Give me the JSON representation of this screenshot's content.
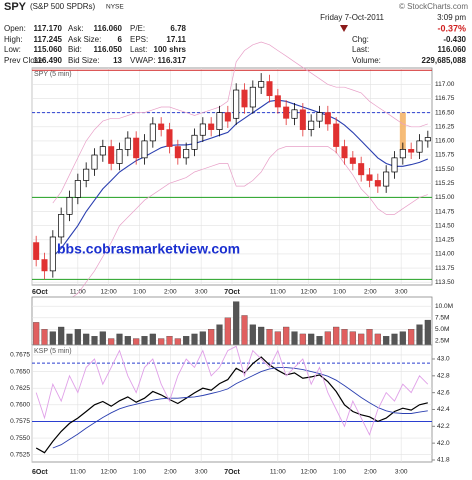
{
  "header": {
    "symbol": "SPY",
    "name": "(S&P 500 SPDRs)",
    "exchange": "NYSE",
    "credit": "© StockCharts.com",
    "date": "Friday  7-Oct-2011",
    "time": "3:09 pm",
    "change_pct": "-0.37%",
    "columns": [
      [
        [
          "Open:",
          "117.170"
        ],
        [
          "High:",
          "117.245"
        ],
        [
          "Low:",
          "115.060"
        ],
        [
          "Prev Close:",
          "116.490"
        ]
      ],
      [
        [
          "Ask:",
          "116.060"
        ],
        [
          "Ask Size:",
          "6"
        ],
        [
          "Bid:",
          "116.050"
        ],
        [
          "Bid Size:",
          "13"
        ]
      ],
      [
        [
          "P/E:",
          "6.78"
        ],
        [
          "EPS:",
          "17.11"
        ],
        [
          "Last:",
          "100 shrs"
        ],
        [
          "VWAP:",
          "116.317"
        ]
      ],
      [
        [
          "Chg:",
          "-0.430"
        ],
        [
          "Last:",
          "116.060"
        ],
        [
          "Volume:",
          "229,685,088"
        ]
      ]
    ]
  },
  "chart_data": [
    {
      "type": "candlestick",
      "title": "SPY (5 min)",
      "annotation": "bbs.cobrasmarketview.com",
      "up_color": "#000000",
      "down_color": "#e03030",
      "open": [
        114.2,
        113.9,
        113.7,
        114.3,
        114.7,
        115.0,
        115.3,
        115.5,
        115.75,
        115.9,
        115.6,
        115.85,
        116.05,
        115.7,
        116.0,
        116.3,
        116.2,
        115.9,
        115.7,
        115.85,
        116.1,
        116.3,
        116.2,
        116.5,
        116.4,
        116.9,
        116.6,
        116.95,
        117.05,
        116.8,
        116.6,
        116.4,
        116.55,
        116.2,
        116.35,
        116.5,
        116.3,
        115.9,
        115.7,
        115.6,
        115.4,
        115.3,
        115.2,
        115.45,
        115.7,
        115.85,
        115.8,
        116.0
      ],
      "high": [
        114.32,
        114.02,
        114.42,
        114.82,
        115.12,
        115.42,
        115.62,
        115.87,
        116.02,
        116.02,
        115.97,
        116.17,
        116.17,
        116.12,
        116.42,
        116.42,
        116.32,
        116.02,
        115.97,
        116.22,
        116.42,
        116.42,
        116.62,
        116.62,
        117.02,
        117.02,
        117.07,
        117.2,
        117.17,
        116.92,
        116.72,
        116.67,
        116.67,
        116.47,
        116.62,
        116.62,
        116.42,
        116.02,
        115.82,
        115.72,
        115.52,
        115.42,
        115.57,
        115.82,
        115.97,
        115.97,
        116.12,
        116.18
      ],
      "low": [
        113.78,
        113.55,
        113.58,
        114.18,
        114.58,
        114.88,
        115.18,
        115.38,
        115.63,
        115.48,
        115.48,
        115.73,
        115.58,
        115.58,
        115.88,
        116.08,
        115.78,
        115.58,
        115.58,
        115.73,
        115.98,
        116.08,
        116.08,
        116.23,
        116.28,
        116.48,
        116.48,
        116.83,
        116.68,
        116.48,
        116.28,
        116.28,
        116.08,
        116.08,
        116.23,
        116.18,
        115.78,
        115.58,
        115.48,
        115.28,
        115.18,
        115.08,
        115.08,
        115.33,
        115.58,
        115.68,
        115.68,
        115.88
      ],
      "close": [
        113.9,
        113.7,
        114.3,
        114.7,
        115.0,
        115.3,
        115.5,
        115.75,
        115.9,
        115.6,
        115.85,
        116.05,
        115.7,
        116.0,
        116.3,
        116.2,
        115.9,
        115.7,
        115.85,
        116.1,
        116.3,
        116.2,
        116.5,
        116.35,
        116.9,
        116.6,
        116.95,
        117.05,
        116.8,
        116.6,
        116.4,
        116.55,
        116.2,
        116.35,
        116.5,
        116.3,
        115.9,
        115.7,
        115.6,
        115.4,
        115.3,
        115.2,
        115.45,
        115.7,
        115.85,
        115.8,
        116.0,
        116.06
      ],
      "overlays": [
        {
          "color": "#2b3fb0",
          "values": [
            null,
            null,
            113.95,
            114.1,
            114.3,
            114.5,
            114.75,
            114.95,
            115.15,
            115.3,
            115.45,
            115.55,
            115.65,
            115.72,
            115.8,
            115.88,
            115.92,
            115.93,
            115.93,
            115.95,
            116.0,
            116.05,
            116.1,
            116.15,
            116.3,
            116.4,
            116.5,
            116.6,
            116.7,
            116.72,
            116.7,
            116.65,
            116.6,
            116.55,
            116.5,
            116.45,
            116.38,
            116.28,
            116.15,
            116.0,
            115.85,
            115.7,
            115.6,
            115.55,
            115.55,
            115.58,
            115.62,
            115.68
          ]
        },
        {
          "color": "#e8a0c8",
          "values": [
            null,
            null,
            114.9,
            115.1,
            115.4,
            115.7,
            116.0,
            116.2,
            116.35,
            116.4,
            116.4,
            116.45,
            116.5,
            116.5,
            116.55,
            116.6,
            116.6,
            116.55,
            116.5,
            116.45,
            116.5,
            116.55,
            116.6,
            116.7,
            117.4,
            117.6,
            117.7,
            117.75,
            117.7,
            117.6,
            117.5,
            117.4,
            117.3,
            117.2,
            117.1,
            117.0,
            116.95,
            116.95,
            116.9,
            116.85,
            116.7,
            116.6,
            116.5,
            116.4,
            116.3,
            116.25,
            116.25,
            116.3
          ]
        },
        {
          "color": "#e8a0c8",
          "values": [
            null,
            null,
            113.0,
            113.1,
            113.2,
            113.3,
            113.5,
            113.7,
            113.95,
            114.2,
            114.5,
            114.65,
            114.8,
            114.95,
            115.05,
            115.15,
            115.25,
            115.3,
            115.35,
            115.45,
            115.5,
            115.55,
            115.6,
            115.6,
            115.2,
            115.2,
            115.3,
            115.45,
            115.7,
            115.85,
            115.9,
            115.9,
            115.9,
            115.9,
            115.9,
            115.9,
            115.8,
            115.6,
            115.4,
            115.15,
            115.0,
            114.8,
            114.7,
            114.7,
            114.8,
            114.9,
            115.0,
            115.05
          ]
        }
      ],
      "levels": [
        {
          "value": 117.25,
          "color": "#d02020",
          "dash": false
        },
        {
          "value": 115.0,
          "color": "#20a020",
          "dash": false
        },
        {
          "value": 113.55,
          "color": "#20a020",
          "dash": false
        },
        {
          "value": 116.5,
          "color": "#2b3fd0",
          "dash": true
        }
      ],
      "highlight": {
        "index": 44,
        "from": 115.8,
        "to": 116.5,
        "color": "#f5b060"
      },
      "ylim": [
        113.45,
        117.29
      ],
      "yticks": [
        {
          "value": 113.5,
          "label": "113.50"
        },
        {
          "value": 113.75,
          "label": "113.75"
        },
        {
          "value": 114,
          "label": "114.00"
        },
        {
          "value": 114.25,
          "label": "114.25"
        },
        {
          "value": 114.5,
          "label": "114.50"
        },
        {
          "value": 114.75,
          "label": "114.75"
        },
        {
          "value": 115,
          "label": "115.00"
        },
        {
          "value": 115.25,
          "label": "115.25"
        },
        {
          "value": 115.5,
          "label": "115.50"
        },
        {
          "value": 115.75,
          "label": "115.75"
        },
        {
          "value": 116,
          "label": "116.00"
        },
        {
          "value": 116.25,
          "label": "116.25"
        },
        {
          "value": 116.5,
          "label": "116.50"
        },
        {
          "value": 116.75,
          "label": "116.75"
        },
        {
          "value": 117,
          "label": "117.00"
        }
      ],
      "xticks": [
        {
          "value": 0,
          "label": "6Oct"
        },
        {
          "value": 5.5,
          "label": "11:00"
        },
        {
          "value": 9.2,
          "label": "12:00"
        },
        {
          "value": 12.9,
          "label": "1:00"
        },
        {
          "value": 16.6,
          "label": "2:00"
        },
        {
          "value": 20.3,
          "label": "3:00"
        },
        {
          "value": 24,
          "label": "7Oct"
        },
        {
          "value": 29.5,
          "label": "11:00"
        },
        {
          "value": 33.2,
          "label": "12:00"
        },
        {
          "value": 36.9,
          "label": "1:00"
        },
        {
          "value": 40.6,
          "label": "2:00"
        },
        {
          "value": 44.3,
          "label": "3:00"
        }
      ]
    },
    {
      "type": "bar",
      "color_from": 0,
      "values": [
        6.5,
        5.0,
        4.5,
        5.5,
        4.0,
        5.0,
        4.0,
        3.5,
        4.5,
        3.0,
        4.0,
        3.5,
        3.0,
        3.5,
        4.0,
        3.0,
        3.5,
        3.0,
        3.5,
        4.0,
        4.5,
        5.0,
        6.0,
        7.5,
        11.0,
        8.0,
        6.0,
        5.5,
        5.0,
        4.5,
        5.5,
        4.5,
        4.0,
        4.0,
        3.5,
        4.5,
        5.5,
        5.0,
        4.5,
        4.0,
        5.0,
        4.0,
        3.5,
        4.0,
        4.5,
        5.0,
        6.0,
        7.0
      ],
      "ylim": [
        1.6,
        12.0
      ],
      "yticks": [
        {
          "value": 2.5,
          "label": "2.5M"
        },
        {
          "value": 5,
          "label": "5.0M"
        },
        {
          "value": 7.5,
          "label": "7.5M"
        },
        {
          "value": 10,
          "label": "10.0M"
        }
      ]
    },
    {
      "type": "line",
      "title": "KSP (5 min)",
      "series": [
        {
          "color": "#000000",
          "values": [
            0.7535,
            0.7528,
            0.7545,
            0.756,
            0.7572,
            0.758,
            0.759,
            0.76,
            0.7605,
            0.7598,
            0.7606,
            0.7612,
            0.7604,
            0.761,
            0.762,
            0.7615,
            0.7608,
            0.7602,
            0.761,
            0.7618,
            0.7625,
            0.7622,
            0.7632,
            0.7638,
            0.7655,
            0.7648,
            0.7662,
            0.7672,
            0.766,
            0.7652,
            0.7645,
            0.7648,
            0.764,
            0.7642,
            0.7645,
            0.7635,
            0.762,
            0.76,
            0.759,
            0.7585,
            0.7582,
            0.7575,
            0.758,
            0.759,
            0.7595,
            0.7592,
            0.76,
            0.7603
          ]
        },
        {
          "color": "#2b3fb0",
          "values": [
            null,
            null,
            0.7535,
            0.754,
            0.7548,
            0.7556,
            0.7565,
            0.7573,
            0.7581,
            0.7588,
            0.7594,
            0.7598,
            0.7601,
            0.7604,
            0.7607,
            0.7609,
            0.761,
            0.761,
            0.7611,
            0.7612,
            0.7614,
            0.7617,
            0.762,
            0.7624,
            0.7632,
            0.7638,
            0.7644,
            0.765,
            0.7654,
            0.7656,
            0.7656,
            0.7655,
            0.7653,
            0.765,
            0.7647,
            0.7643,
            0.7637,
            0.7629,
            0.762,
            0.7611,
            0.7603,
            0.7596,
            0.7591,
            0.7588,
            0.7587,
            0.7587,
            0.7589,
            0.7591
          ]
        },
        {
          "color": "#e0a0e8",
          "axis": "y2",
          "values": [
            42.6,
            42.3,
            42.7,
            42.5,
            42.8,
            42.6,
            42.9,
            43.0,
            42.7,
            42.9,
            43.1,
            42.8,
            42.6,
            42.9,
            43.0,
            42.7,
            42.5,
            42.8,
            43.0,
            42.9,
            43.1,
            42.8,
            42.9,
            43.1,
            43.15,
            42.8,
            43.1,
            43.0,
            42.9,
            43.1,
            42.8,
            42.9,
            43.0,
            42.7,
            42.9,
            42.6,
            42.4,
            42.2,
            42.5,
            42.3,
            42.1,
            42.4,
            42.6,
            42.5,
            42.7,
            42.6,
            42.8,
            42.7
          ]
        }
      ],
      "levels": [
        {
          "value": 0.7575,
          "color": "#2b3fd0",
          "dash": false
        }
      ],
      "y2levels": [
        {
          "value": 42.95,
          "color": "#2b3fd0",
          "dash": true
        }
      ],
      "ylim": [
        0.7514,
        0.769
      ],
      "yticks": [
        {
          "value": 0.7525,
          "label": "0.7525"
        },
        {
          "value": 0.755,
          "label": "0.7550"
        },
        {
          "value": 0.7575,
          "label": "0.7575"
        },
        {
          "value": 0.76,
          "label": "0.7600"
        },
        {
          "value": 0.7625,
          "label": "0.7625"
        },
        {
          "value": 0.765,
          "label": "0.7650"
        },
        {
          "value": 0.7675,
          "label": "0.7675"
        }
      ],
      "y2lim": [
        41.776,
        43.166
      ],
      "y2ticks": [
        {
          "value": 41.8,
          "label": "41.8"
        },
        {
          "value": 42,
          "label": "42.0"
        },
        {
          "value": 42.2,
          "label": "42.2"
        },
        {
          "value": 42.4,
          "label": "42.4"
        },
        {
          "value": 42.6,
          "label": "42.6"
        },
        {
          "value": 42.8,
          "label": "42.8"
        },
        {
          "value": 43,
          "label": "43.0"
        }
      ],
      "xticks": [
        {
          "value": 0,
          "label": "6Oct"
        },
        {
          "value": 5.5,
          "label": "11:00"
        },
        {
          "value": 9.2,
          "label": "12:00"
        },
        {
          "value": 12.9,
          "label": "1:00"
        },
        {
          "value": 16.6,
          "label": "2:00"
        },
        {
          "value": 20.3,
          "label": "3:00"
        },
        {
          "value": 24,
          "label": "7Oct"
        },
        {
          "value": 29.5,
          "label": "11:00"
        },
        {
          "value": 33.2,
          "label": "12:00"
        },
        {
          "value": 36.9,
          "label": "1:00"
        },
        {
          "value": 40.6,
          "label": "2:00"
        },
        {
          "value": 44.3,
          "label": "3:00"
        }
      ]
    }
  ]
}
